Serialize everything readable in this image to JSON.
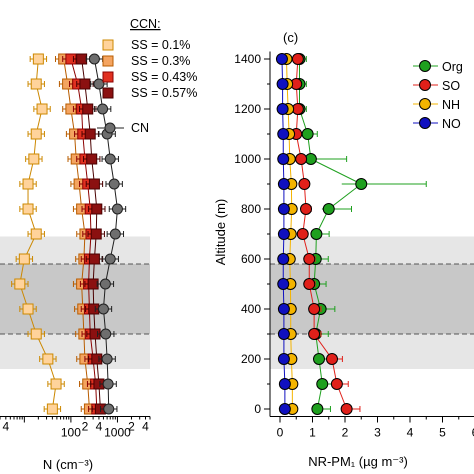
{
  "chart_data": [
    {
      "panel": "",
      "type": "scatter",
      "xscale": "log",
      "xlabel": "N (cm⁻³)",
      "ylabel": "",
      "xlim": [
        3,
        5000
      ],
      "ylim": [
        -30,
        1430
      ],
      "x_tick_labels": [
        "4",
        "100",
        "2",
        "4",
        "1000",
        "2",
        "4"
      ],
      "legend": {
        "title": "CCN:",
        "placement": "top-right",
        "entries": [
          "SS = 0.1%",
          "SS = 0.3%",
          "SS = 0.43%",
          "SS = 0.57%",
          "CN"
        ]
      },
      "altitudes": [
        0,
        100,
        200,
        300,
        400,
        500,
        600,
        700,
        800,
        900,
        1000,
        1100,
        1200,
        1300,
        1400
      ],
      "series": [
        {
          "name": "SS = 0.1%",
          "color": "#ffd39b",
          "edge": "#cc8800",
          "values": [
            40,
            48,
            32,
            18,
            12,
            8,
            10,
            18,
            12,
            12,
            16,
            18,
            24,
            18,
            20
          ]
        },
        {
          "name": "SS = 0.3%",
          "color": "#f4a460",
          "edge": "#b85c00",
          "values": [
            250,
            230,
            200,
            190,
            180,
            170,
            190,
            200,
            170,
            150,
            130,
            120,
            100,
            85,
            70
          ]
        },
        {
          "name": "SS = 0.43%",
          "color": "#e03020",
          "edge": "#8b0000",
          "values": [
            360,
            340,
            300,
            260,
            250,
            240,
            250,
            270,
            260,
            230,
            200,
            180,
            170,
            140,
            100
          ]
        },
        {
          "name": "SS = 0.57%",
          "color": "#8b1010",
          "edge": "#4a0000",
          "values": [
            430,
            400,
            360,
            330,
            310,
            300,
            320,
            350,
            360,
            320,
            280,
            260,
            230,
            200,
            170
          ]
        },
        {
          "name": "CN",
          "color": "#6e6e6e",
          "edge": "#202020",
          "values": [
            650,
            630,
            600,
            560,
            500,
            550,
            700,
            900,
            1000,
            850,
            700,
            600,
            480,
            400,
            320
          ]
        }
      ],
      "shaded_bands": [
        {
          "ylim": [
            160,
            300
          ],
          "shade": "light"
        },
        {
          "ylim": [
            300,
            580
          ],
          "shade": "dark"
        },
        {
          "ylim": [
            580,
            690
          ],
          "shade": "light"
        }
      ],
      "dashed_lines_y": [
        300,
        580
      ]
    },
    {
      "panel": "(c)",
      "type": "scatter",
      "xlabel": "NR-PM₁ (µg m⁻³)",
      "ylabel": "Altitude (m)",
      "xlim": [
        -0.2,
        6
      ],
      "ylim": [
        -30,
        1430
      ],
      "x_ticks": [
        0,
        1,
        2,
        3,
        4,
        5,
        6
      ],
      "y_ticks": [
        0,
        200,
        400,
        600,
        800,
        1000,
        1200,
        1400
      ],
      "legend": {
        "placement": "top-right",
        "entries": [
          "Org",
          "SO",
          "NH",
          "NO"
        ]
      },
      "altitudes": [
        0,
        100,
        200,
        300,
        400,
        500,
        600,
        700,
        800,
        900,
        1000,
        1100,
        1200,
        1300,
        1400
      ],
      "series": [
        {
          "name": "Org",
          "color": "#1fa01f",
          "values": [
            1.15,
            1.3,
            1.2,
            1.1,
            1.25,
            1.05,
            1.1,
            1.12,
            1.5,
            2.5,
            0.95,
            0.85,
            0.6,
            0.6,
            0.6
          ]
        },
        {
          "name": "SO",
          "color": "#e0201a",
          "values": [
            2.05,
            1.75,
            1.6,
            1.05,
            1.05,
            0.9,
            0.9,
            0.7,
            0.8,
            0.75,
            0.65,
            0.5,
            0.55,
            0.5,
            0.55
          ]
        },
        {
          "name": "NH",
          "color": "#f4b400",
          "values": [
            0.38,
            0.38,
            0.35,
            0.33,
            0.33,
            0.32,
            0.3,
            0.33,
            0.36,
            0.35,
            0.3,
            0.28,
            0.25,
            0.22,
            0.2
          ]
        },
        {
          "name": "NO",
          "color": "#1010c0",
          "values": [
            0.15,
            0.15,
            0.12,
            0.12,
            0.12,
            0.1,
            0.1,
            0.12,
            0.12,
            0.12,
            0.1,
            0.1,
            0.08,
            0.08,
            0.06
          ]
        }
      ],
      "shaded_bands": [
        {
          "ylim": [
            160,
            300
          ],
          "shade": "light"
        },
        {
          "ylim": [
            300,
            580
          ],
          "shade": "dark"
        },
        {
          "ylim": [
            580,
            690
          ],
          "shade": "light"
        }
      ],
      "dashed_lines_y": [
        300,
        580
      ]
    }
  ]
}
